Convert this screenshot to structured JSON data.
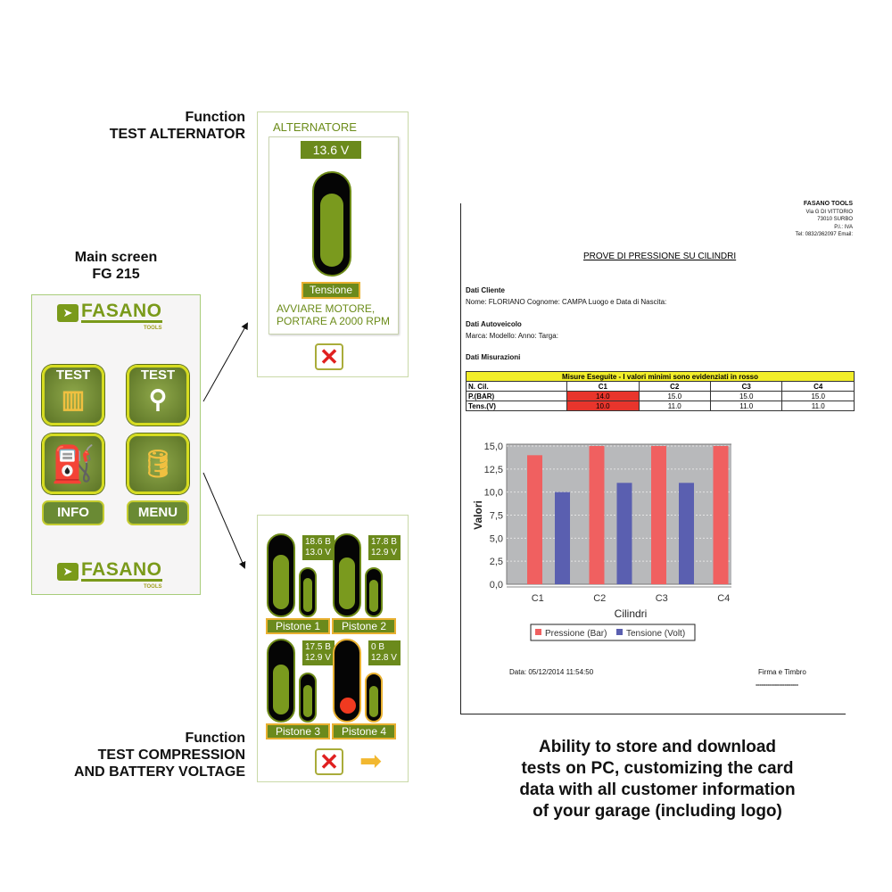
{
  "captions": {
    "alt_line1": "Function",
    "alt_line2": "TEST ALTERNATOR",
    "main_line1": "Main screen",
    "main_line2": "FG 215",
    "comp_line1": "Function",
    "comp_line2": "TEST COMPRESSION",
    "comp_line3": "AND BATTERY VOLTAGE"
  },
  "main_screen": {
    "logo": "FASANO",
    "logo_sub": "TOOLS",
    "tiles": [
      {
        "label": "TEST",
        "icon": "alternator-icon"
      },
      {
        "label": "TEST",
        "icon": "piston-icon"
      },
      {
        "label": "",
        "icon": "fuel-pump-icon"
      },
      {
        "label": "",
        "icon": "oil-can-icon"
      }
    ],
    "info": "INFO",
    "menu": "MENU"
  },
  "alternator": {
    "title": "ALTERNATORE",
    "value": "13.6 V",
    "label": "Tensione",
    "msg1": "AVVIARE MOTORE,",
    "msg2": "PORTARE A 2000 RPM",
    "level": 0.85
  },
  "compression": {
    "pistons": [
      {
        "label": "Pistone 1",
        "bar": "18.6 B",
        "volt": "13.0 V",
        "bar_level": 0.85,
        "volt_level": 0.85
      },
      {
        "label": "Pistone 2",
        "bar": "17.8 B",
        "volt": "12.9 V",
        "bar_level": 0.8,
        "volt_level": 0.8
      },
      {
        "label": "Pistone 3",
        "bar": "17.5 B",
        "volt": "12.9 V",
        "bar_level": 0.78,
        "volt_level": 0.8
      },
      {
        "label": "Pistone 4",
        "bar": "0 B",
        "volt": "12.8 V",
        "bar_level": 0,
        "volt_level": 0.78
      }
    ],
    "accent": "#e8b030"
  },
  "report": {
    "company": "FASANO TOOLS",
    "addr1": "Via G DI VITTORIO",
    "addr2": "73010   SURBO",
    "addr3": "P.I.: IVA",
    "addr4": "Tel: 0832/362097     Email:",
    "title": "PROVE DI PRESSIONE SU CILINDRI",
    "client_h": "Dati Cliente",
    "client": "Nome: FLORIANO   Cognome: CAMPA   Luogo e Data di Nascita:",
    "vehicle_h": "Dati Autoveicolo",
    "vehicle": "Marca:   Modello:   Anno:   Targa:",
    "meas_h": "Dati Misurazioni",
    "table_title": "Misure Eseguite - I valori minimi sono evidenziati in rosso",
    "header": [
      "N. Cil.",
      "C1",
      "C2",
      "C3",
      "C4"
    ],
    "rows": [
      [
        "P.(BAR)",
        "14.0",
        "15.0",
        "15.0",
        "15.0"
      ],
      [
        "Tens.(V)",
        "10.0",
        "11.0",
        "11.0",
        "11.0"
      ]
    ],
    "date": "Data: 05/12/2014 11:54:50",
    "sign": "Firma e Timbro",
    "sign_line": "----------------------",
    "highlight": "#e8352c",
    "table_title_bg": "#f2ee2a"
  },
  "chart_data": {
    "type": "bar",
    "categories": [
      "C1",
      "C2",
      "C3",
      "C4"
    ],
    "series": [
      {
        "name": "Pressione (Bar)",
        "values": [
          14,
          15,
          15,
          15
        ],
        "color": "#f06060"
      },
      {
        "name": "Tensione (Volt)",
        "values": [
          10,
          11,
          11,
          11
        ],
        "color": "#5a5fb0"
      }
    ],
    "xlabel": "Cilindri",
    "ylabel": "Valori",
    "ylim": [
      0,
      15
    ],
    "yticks": [
      "0,0",
      "2,5",
      "5,0",
      "7,5",
      "10,0",
      "12,5",
      "15,0"
    ],
    "grid": true,
    "legend": "bottom"
  },
  "footer": [
    "Ability to store and download",
    "tests on PC, customizing the card",
    "data with all customer information",
    "of your garage (including logo)"
  ]
}
